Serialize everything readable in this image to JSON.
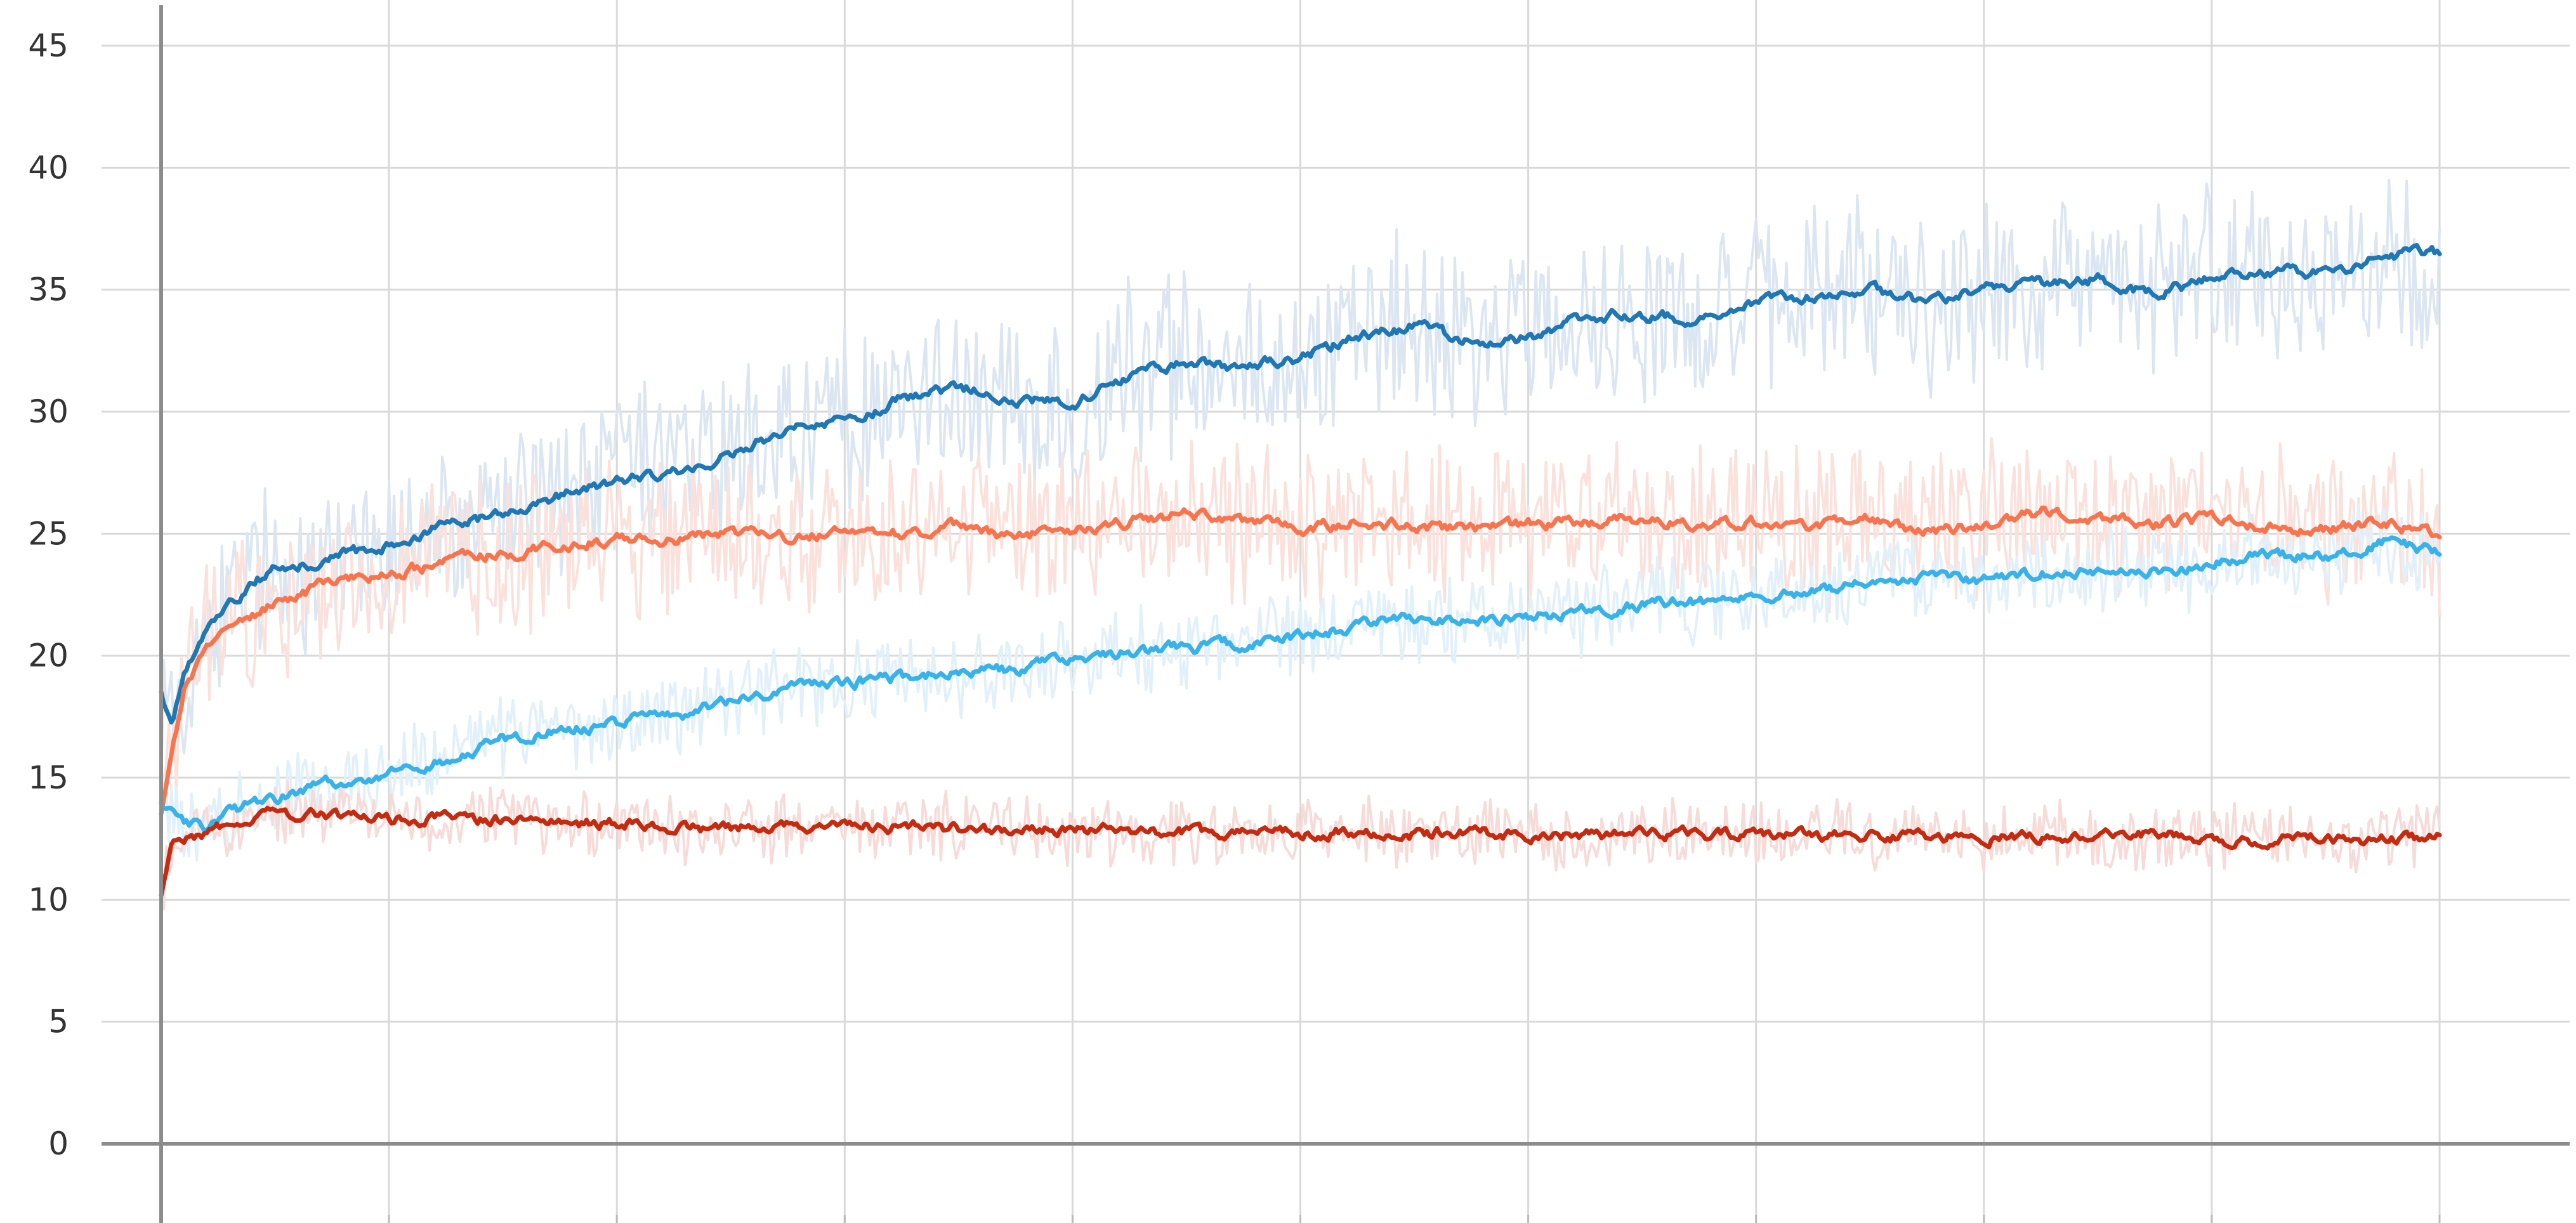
{
  "chart_data": {
    "type": "line",
    "title": "",
    "xlabel": "",
    "ylabel": "",
    "ylim": [
      -3,
      46
    ],
    "yticks": [
      0,
      5,
      10,
      15,
      20,
      25,
      30,
      35,
      40,
      45
    ],
    "ytick_labels": [
      "0",
      "5",
      "10",
      "15",
      "20",
      "25",
      "30",
      "35",
      "40",
      "45"
    ],
    "xlim": [
      0,
      10.6
    ],
    "x_gridlines": [
      0,
      1,
      2,
      3,
      4,
      5,
      6,
      7,
      8,
      9,
      10
    ],
    "x_tick_labels": [],
    "grid": true,
    "legend": "none",
    "series": [
      {
        "color": "#1f77b4",
        "raw_color": "#dbe6f2",
        "x": [
          0,
          0.05,
          0.1,
          0.2,
          0.3,
          0.4,
          0.5,
          0.75,
          1,
          1.25,
          1.5,
          1.75,
          2,
          2.25,
          2.5,
          2.75,
          3,
          3.25,
          3.5,
          3.75,
          4,
          4.25,
          4.5,
          4.75,
          5,
          5.25,
          5.5,
          5.75,
          6,
          6.25,
          6.5,
          6.75,
          7,
          7.25,
          7.5,
          7.75,
          8,
          8.25,
          8.5,
          8.75,
          9,
          9.25,
          9.5,
          9.75,
          10
        ],
        "values": [
          18.5,
          17,
          19,
          21,
          22,
          23,
          23.5,
          24,
          24.5,
          25.3,
          25.8,
          26.5,
          27.2,
          27.5,
          28.2,
          29.3,
          29.5,
          30.5,
          31,
          30.6,
          30.3,
          31.5,
          32.1,
          31.8,
          32.2,
          33.1,
          33.5,
          32.8,
          33,
          33.9,
          34,
          33.8,
          34.5,
          34.7,
          35,
          34.5,
          35,
          35.2,
          35.5,
          34.8,
          35.5,
          35.8,
          35.6,
          36.4,
          36.5
        ],
        "noise": 3.2
      },
      {
        "color": "#f7744e",
        "raw_color": "#fbe1dc",
        "x": [
          0,
          0.05,
          0.1,
          0.2,
          0.3,
          0.4,
          0.5,
          0.75,
          1,
          1.25,
          1.5,
          1.75,
          2,
          2.25,
          2.5,
          2.75,
          3,
          3.25,
          3.5,
          3.75,
          4,
          4.25,
          4.5,
          4.75,
          5,
          5.25,
          5.5,
          5.75,
          6,
          6.25,
          6.5,
          6.75,
          7,
          7.25,
          7.5,
          7.75,
          8,
          8.25,
          8.5,
          8.75,
          9,
          9.25,
          9.5,
          9.75,
          10
        ],
        "values": [
          13.5,
          16,
          18.5,
          20.5,
          21.3,
          21.6,
          22.2,
          23,
          23.4,
          23.8,
          24.2,
          24.5,
          24.8,
          24.8,
          25,
          24.8,
          25.1,
          25,
          25.3,
          24.9,
          25.1,
          25.5,
          25.8,
          25.5,
          25.2,
          25.5,
          25.3,
          25.2,
          25.4,
          25.5,
          25.6,
          25.4,
          25.5,
          25.3,
          25.6,
          25.1,
          25.4,
          25.9,
          25.6,
          25.4,
          25.6,
          25.3,
          25.2,
          25.5,
          25
        ],
        "noise": 2.8
      },
      {
        "color": "#38b2e8",
        "raw_color": "#e2f0fa",
        "x": [
          0,
          0.05,
          0.1,
          0.2,
          0.3,
          0.4,
          0.5,
          0.75,
          1,
          1.25,
          1.5,
          1.75,
          2,
          2.1,
          2.25,
          2.5,
          2.75,
          3,
          3.25,
          3.5,
          3.75,
          4,
          4.25,
          4.5,
          4.75,
          5,
          5.25,
          5.5,
          5.75,
          6,
          6.25,
          6.5,
          6.75,
          7,
          7.25,
          7.5,
          7.75,
          8,
          8.25,
          8.5,
          8.75,
          9,
          9.25,
          9.5,
          9.75,
          10
        ],
        "values": [
          14,
          13.5,
          13.2,
          13,
          13.5,
          13.9,
          14.1,
          14.8,
          15.2,
          15.7,
          16.6,
          17,
          17.2,
          17.6,
          17.4,
          18.2,
          18.6,
          18.9,
          19.1,
          19.3,
          19.4,
          19.8,
          20.2,
          20.3,
          20.5,
          20.8,
          21.2,
          21.6,
          21.4,
          21.6,
          21.8,
          22.1,
          22.2,
          22.3,
          22.6,
          23,
          23.2,
          23.1,
          23.4,
          23.5,
          23.4,
          23.8,
          24.2,
          24,
          24.7,
          24.2
        ],
        "noise": 1.5
      },
      {
        "color": "#c42b10",
        "raw_color": "#f6dbd8",
        "x": [
          0,
          0.05,
          0.1,
          0.2,
          0.3,
          0.4,
          0.5,
          0.75,
          1,
          1.25,
          1.5,
          1.75,
          2,
          2.25,
          2.5,
          2.75,
          3,
          3.25,
          3.5,
          3.75,
          4,
          4.25,
          4.5,
          4.75,
          5,
          5.25,
          5.5,
          5.75,
          6,
          6.25,
          6.5,
          6.75,
          7,
          7.25,
          7.5,
          7.75,
          8,
          8.25,
          8.5,
          8.75,
          9,
          9.25,
          9.5,
          9.75,
          10
        ],
        "values": [
          10.2,
          12.2,
          12.4,
          12.8,
          13.1,
          13.4,
          13.6,
          13.5,
          13.3,
          13.3,
          13.3,
          13.2,
          13.1,
          13,
          12.9,
          13,
          12.9,
          13,
          12.9,
          12.8,
          12.9,
          12.8,
          12.7,
          12.8,
          12.7,
          12.8,
          12.7,
          12.8,
          12.7,
          12.6,
          12.8,
          12.6,
          12.7,
          12.6,
          12.7,
          12.5,
          12.6,
          12.6,
          12.5,
          12.7,
          12.5,
          12.4,
          12.5,
          12.5,
          12.6
        ],
        "noise": 1.2
      }
    ]
  }
}
